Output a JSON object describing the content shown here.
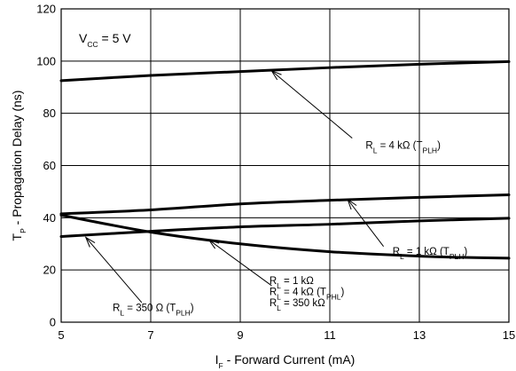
{
  "chart_data": {
    "type": "line",
    "xlabel": {
      "main": "I",
      "sub": "F",
      "rest": " - Forward Current (mA)"
    },
    "ylabel": {
      "main": "T",
      "sub": "P",
      "rest": " - Propagation Delay (ns)"
    },
    "xlim": [
      5,
      15
    ],
    "ylim": [
      0,
      120
    ],
    "xticks": [
      5,
      7,
      9,
      11,
      13,
      15
    ],
    "yticks": [
      0,
      20,
      40,
      60,
      80,
      100,
      120
    ],
    "grid": true,
    "condition": {
      "main": "V",
      "sub": "CC",
      "rest": "  = 5 V"
    },
    "series": [
      {
        "id": "s1",
        "x": [
          5,
          7,
          9,
          11,
          13,
          15
        ],
        "y": [
          92.5,
          94.5,
          96,
          97.5,
          98.8,
          99.8
        ]
      },
      {
        "id": "s2",
        "x": [
          5,
          7,
          9,
          11,
          13,
          15
        ],
        "y": [
          41.5,
          43,
          45.3,
          46.7,
          47.8,
          48.8
        ]
      },
      {
        "id": "s3",
        "x": [
          5,
          7,
          9,
          11,
          13,
          15
        ],
        "y": [
          32.8,
          34.8,
          36.5,
          37.5,
          38.8,
          39.8
        ]
      },
      {
        "id": "s4",
        "x": [
          5,
          7,
          9,
          11,
          13,
          14,
          15
        ],
        "y": [
          41,
          34.5,
          30,
          27,
          25.3,
          24.8,
          24.5
        ]
      }
    ],
    "annotations": [
      {
        "id": "a1",
        "lines": [
          [
            {
              "t": "R"
            },
            {
              "t": "L",
              "sub": true
            },
            {
              "t": " = 4 kΩ  (T"
            },
            {
              "t": "PLH",
              "sub": true
            },
            {
              "t": ")"
            }
          ]
        ],
        "text_at": [
          11.8,
          66.5
        ],
        "arrow_from": [
          11.5,
          70.5
        ],
        "arrow_to": [
          9.7,
          96.3
        ]
      },
      {
        "id": "a2",
        "lines": [
          [
            {
              "t": "R"
            },
            {
              "t": "L",
              "sub": true
            },
            {
              "t": " = 1 kΩ  (T"
            },
            {
              "t": "PLH",
              "sub": true
            },
            {
              "t": ")"
            }
          ]
        ],
        "text_at": [
          12.4,
          25.8
        ],
        "arrow_from": [
          12.2,
          29
        ],
        "arrow_to": [
          11.4,
          47
        ]
      },
      {
        "id": "a3",
        "lines": [
          [
            {
              "t": "R"
            },
            {
              "t": "L",
              "sub": true
            },
            {
              "t": " = 1 kΩ"
            }
          ],
          [
            {
              "t": "R"
            },
            {
              "t": "L",
              "sub": true
            },
            {
              "t": " = 4 kΩ  (T"
            },
            {
              "t": "PHL",
              "sub": true
            },
            {
              "t": ")"
            }
          ],
          [
            {
              "t": "R"
            },
            {
              "t": "L",
              "sub": true
            },
            {
              "t": " = 350 kΩ"
            }
          ]
        ],
        "text_at": [
          9.65,
          14.7
        ],
        "arrow_from": [
          9.7,
          14
        ],
        "arrow_to": [
          8.3,
          31.5
        ]
      },
      {
        "id": "a4",
        "lines": [
          [
            {
              "t": "R"
            },
            {
              "t": "L",
              "sub": true
            },
            {
              "t": " = 350 Ω  (T"
            },
            {
              "t": "PLH",
              "sub": true
            },
            {
              "t": ")"
            }
          ]
        ],
        "text_at": [
          6.15,
          4.3
        ],
        "arrow_from": [
          6.8,
          7.5
        ],
        "arrow_to": [
          5.55,
          32.5
        ]
      }
    ]
  }
}
